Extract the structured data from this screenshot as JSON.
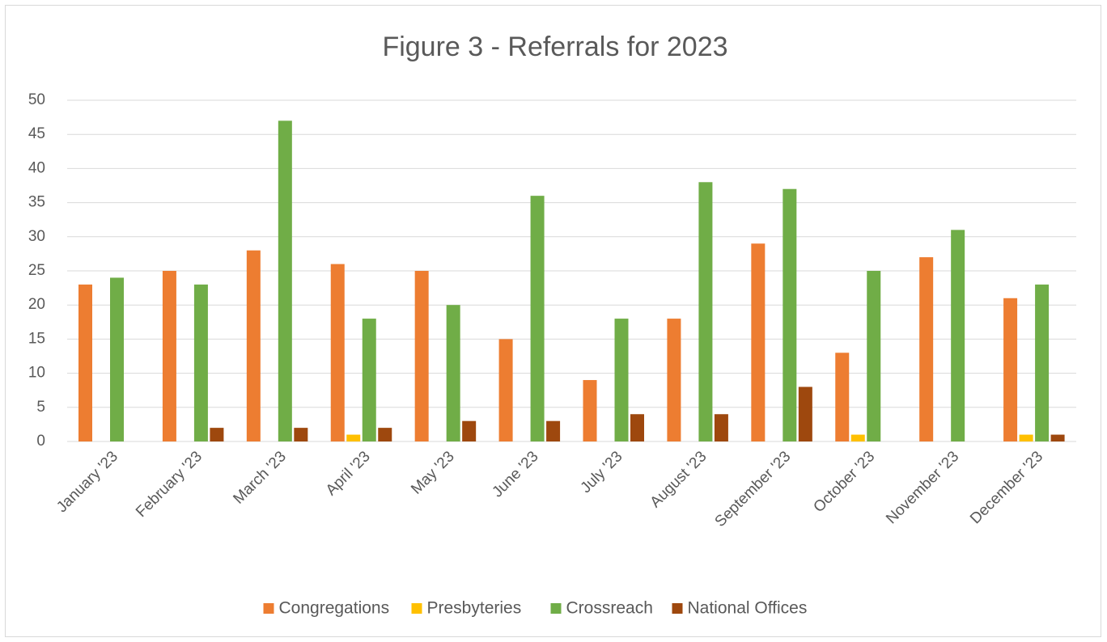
{
  "chart_data": {
    "type": "bar",
    "title": "Figure 3 - Referrals for 2023",
    "categories": [
      "January '23",
      "February '23",
      "March '23",
      "April '23",
      "May '23",
      "June '23",
      "July '23",
      "August '23",
      "September '23",
      "October '23",
      "November '23",
      "December '23"
    ],
    "series": [
      {
        "name": "Congregations",
        "color": "#ED7D31",
        "values": [
          23,
          25,
          28,
          26,
          25,
          15,
          9,
          18,
          29,
          13,
          27,
          21
        ]
      },
      {
        "name": "Presbyteries",
        "color": "#FFC000",
        "values": [
          0,
          0,
          0,
          1,
          0,
          0,
          0,
          0,
          0,
          1,
          0,
          1
        ]
      },
      {
        "name": "Crossreach",
        "color": "#70AD47",
        "values": [
          24,
          23,
          47,
          18,
          20,
          36,
          18,
          38,
          37,
          25,
          31,
          23
        ]
      },
      {
        "name": "National Offices",
        "color": "#9E480E",
        "values": [
          0,
          2,
          2,
          2,
          3,
          3,
          4,
          4,
          8,
          0,
          0,
          1
        ]
      }
    ],
    "ylim": [
      0,
      50
    ],
    "yticks": [
      0,
      5,
      10,
      15,
      20,
      25,
      30,
      35,
      40,
      45,
      50
    ],
    "grid": true,
    "legend": "bottom"
  }
}
